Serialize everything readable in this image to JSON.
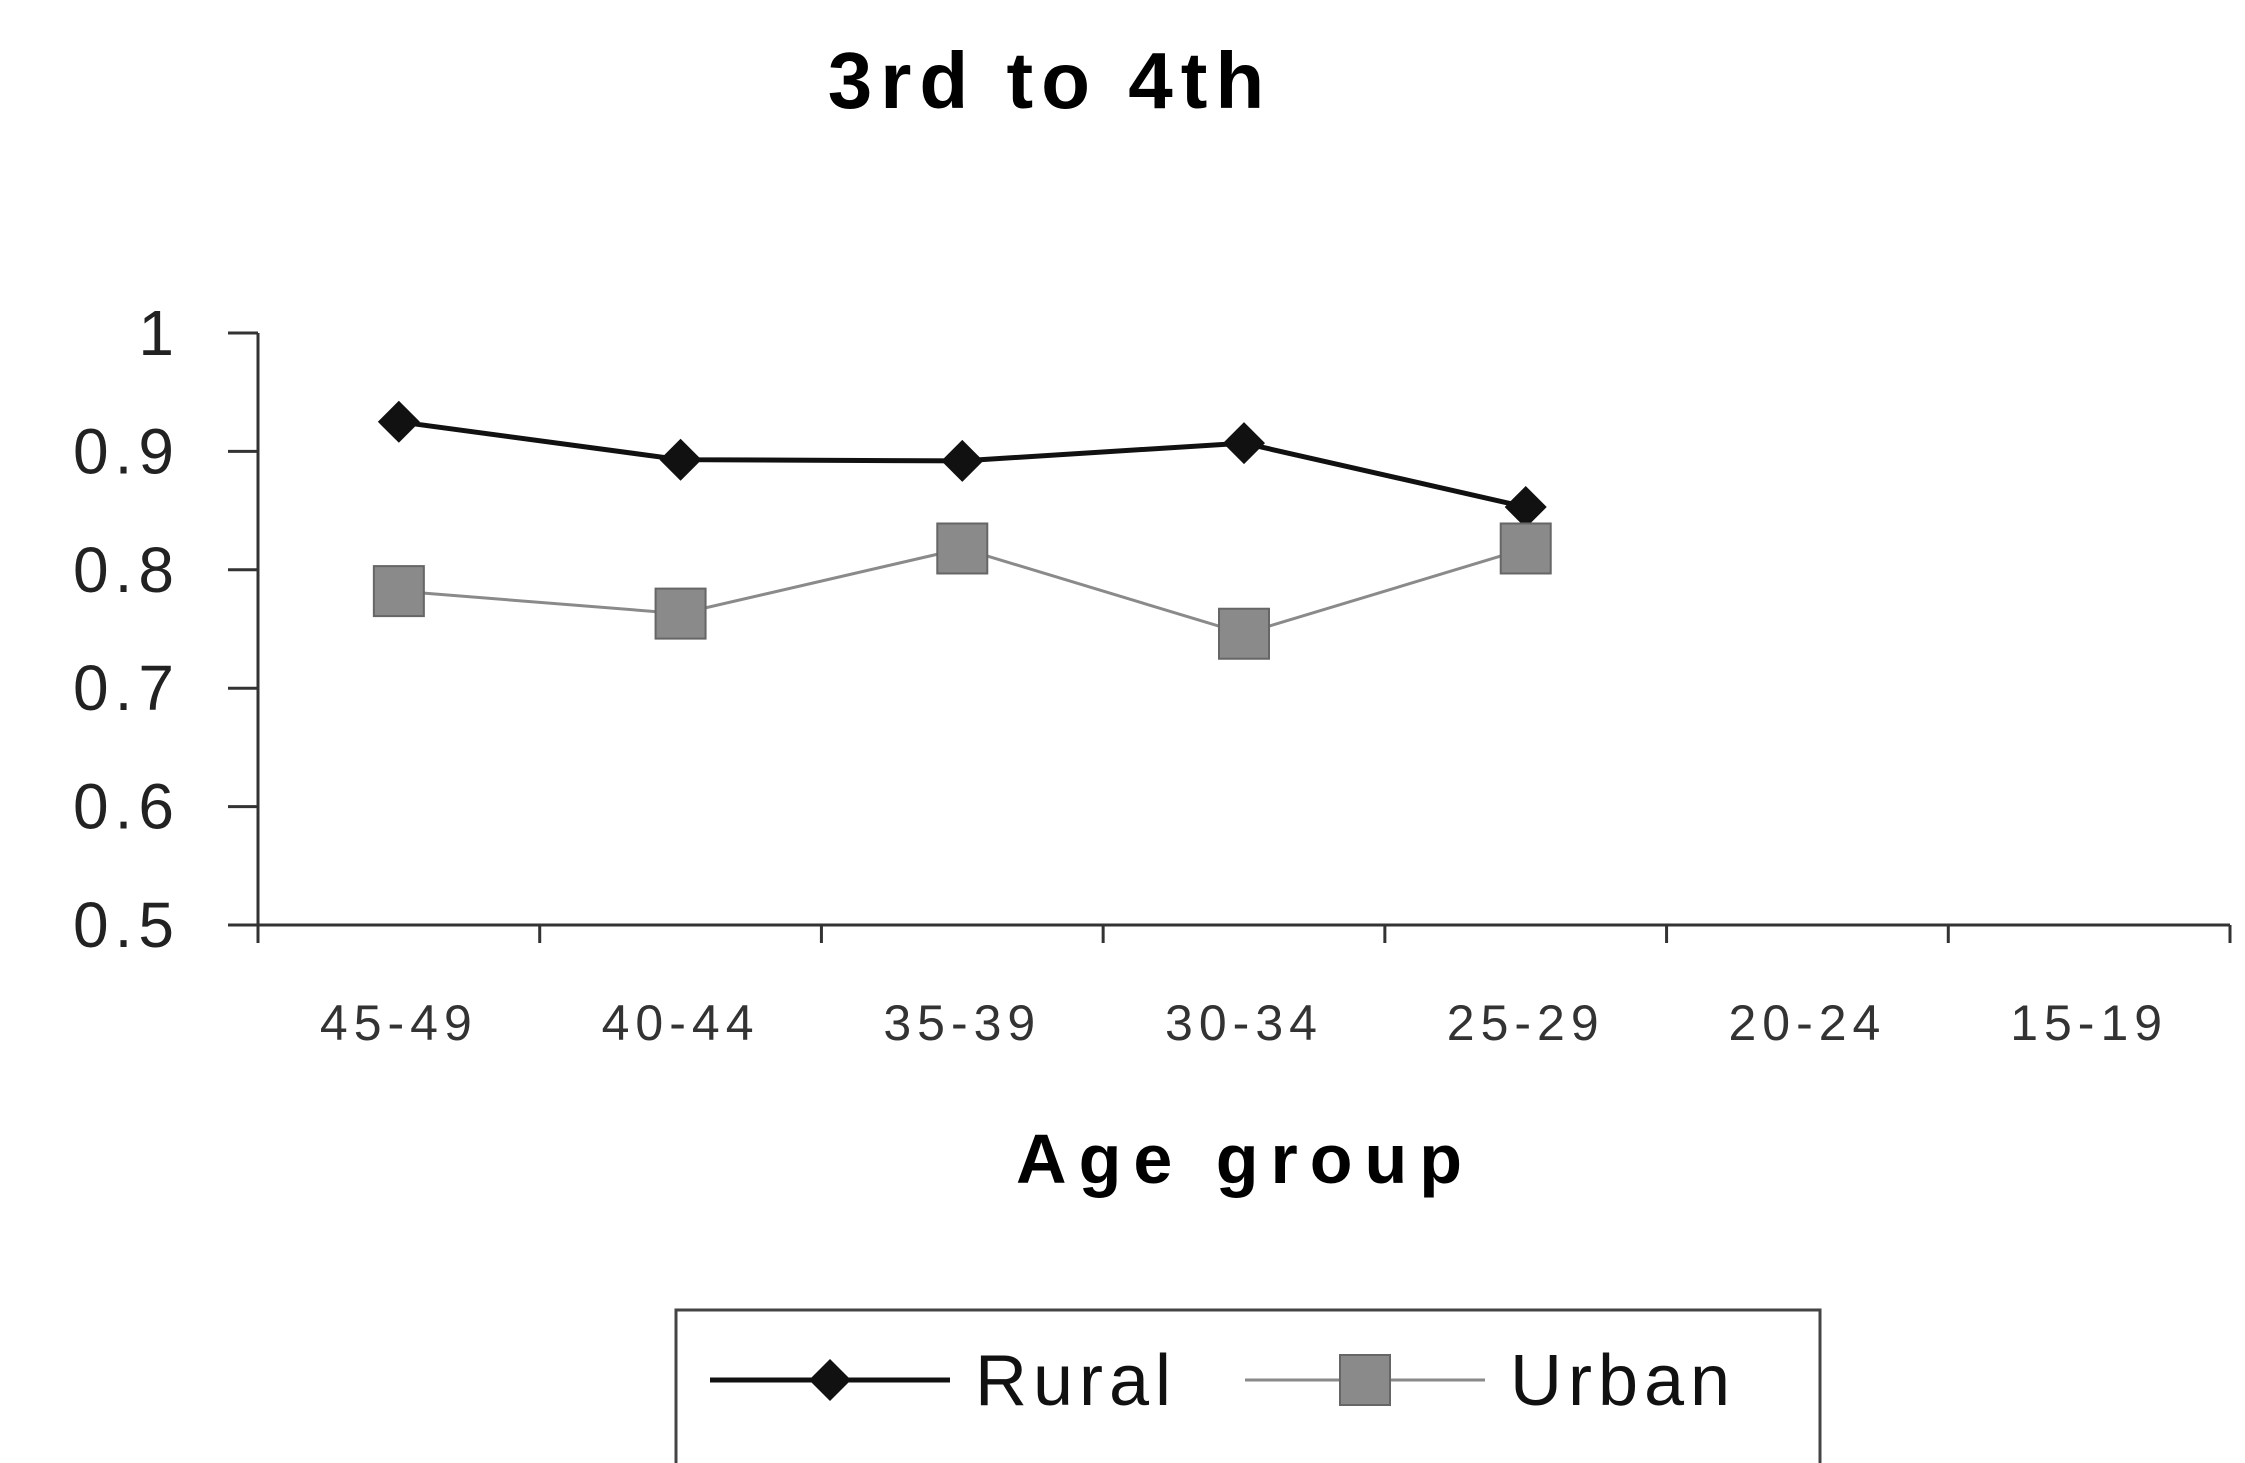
{
  "chart_data": {
    "type": "line",
    "title": "3rd to 4th",
    "xlabel": "Age group",
    "ylabel": "",
    "categories": [
      "45-49",
      "40-44",
      "35-39",
      "30-34",
      "25-29",
      "20-24",
      "15-19"
    ],
    "ylim": [
      0.5,
      1
    ],
    "yticks": [
      "1",
      "0.9",
      "0.8",
      "0.7",
      "0.6",
      "0.5"
    ],
    "grid": false,
    "legend_position": "bottom",
    "series": [
      {
        "name": "Rural",
        "values": [
          0.925,
          0.893,
          0.892,
          0.907,
          0.853,
          null,
          null
        ],
        "color": "#111111",
        "marker": "diamond"
      },
      {
        "name": "Urban",
        "values": [
          0.782,
          0.763,
          0.818,
          0.746,
          0.818,
          null,
          null
        ],
        "color": "#8a8a8a",
        "marker": "square"
      }
    ]
  }
}
